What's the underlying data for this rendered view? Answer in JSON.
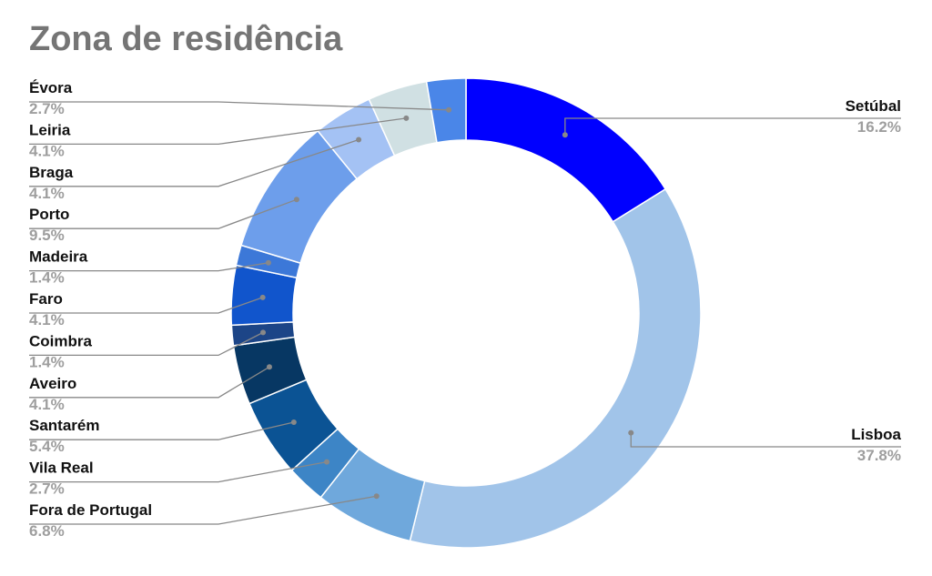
{
  "chart_data": {
    "type": "pie",
    "style": "donut",
    "title": "Zona de residência",
    "slices": [
      {
        "name": "Setúbal",
        "value": 16.2,
        "label": "16.2%",
        "color": "#0000ff"
      },
      {
        "name": "Lisboa",
        "value": 37.8,
        "label": "37.8%",
        "color": "#a1c4e9"
      },
      {
        "name": "Fora de Portugal",
        "value": 6.8,
        "label": "6.8%",
        "color": "#6fa8dc"
      },
      {
        "name": "Vila Real",
        "value": 2.7,
        "label": "2.7%",
        "color": "#3d85c6"
      },
      {
        "name": "Santarém",
        "value": 5.4,
        "label": "5.4%",
        "color": "#0b5394"
      },
      {
        "name": "Aveiro",
        "value": 4.1,
        "label": "4.1%",
        "color": "#073763"
      },
      {
        "name": "Coimbra",
        "value": 1.4,
        "label": "1.4%",
        "color": "#1c4587"
      },
      {
        "name": "Faro",
        "value": 4.1,
        "label": "4.1%",
        "color": "#1155cc"
      },
      {
        "name": "Madeira",
        "value": 1.4,
        "label": "1.4%",
        "color": "#3c78d8"
      },
      {
        "name": "Porto",
        "value": 9.5,
        "label": "9.5%",
        "color": "#6d9eeb"
      },
      {
        "name": "Braga",
        "value": 4.1,
        "label": "4.1%",
        "color": "#a4c2f4"
      },
      {
        "name": "Leiria",
        "value": 4.1,
        "label": "4.1%",
        "color": "#d0e0e3"
      },
      {
        "name": "Évora",
        "value": 2.7,
        "label": "2.7%",
        "color": "#4a86e8"
      }
    ]
  }
}
